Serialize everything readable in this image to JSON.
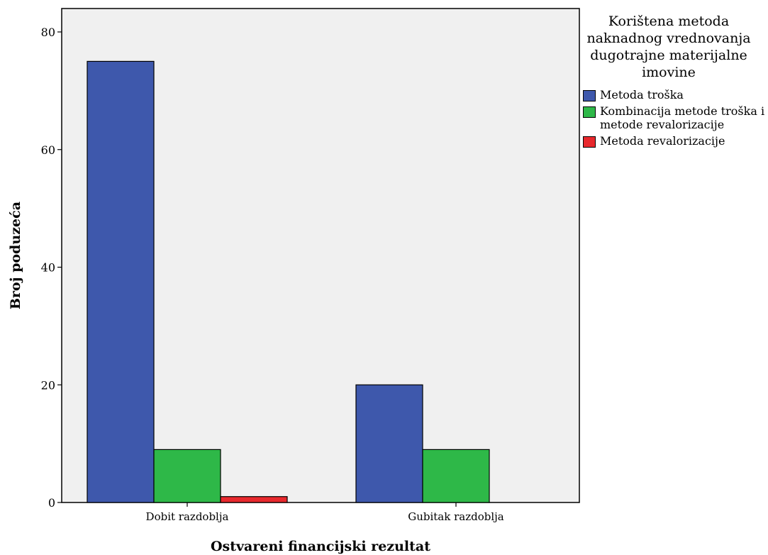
{
  "chart_data": {
    "type": "bar",
    "categories": [
      "Dobit razdoblja",
      "Gubitak razdoblja"
    ],
    "series": [
      {
        "name": "Metoda troška",
        "values": [
          75,
          20
        ],
        "color": "#3e58ac"
      },
      {
        "name": "Kombinacija metode troška i metode revalorizacije",
        "values": [
          9,
          9
        ],
        "color": "#2eb848"
      },
      {
        "name": "Metoda revalorizacije",
        "values": [
          1,
          0
        ],
        "color": "#e8282d"
      }
    ],
    "xlabel": "Ostvareni financijski rezultat",
    "ylabel": "Broj poduzeća",
    "ylim": [
      0,
      85
    ],
    "yticks": [
      0,
      20,
      40,
      60,
      80
    ],
    "legend": {
      "title": "Korištena metoda naknadnog vrednovanja dugotrajne materijalne imovine",
      "placement": "right"
    },
    "plot_background": "#f0f0f0",
    "grid": false
  }
}
